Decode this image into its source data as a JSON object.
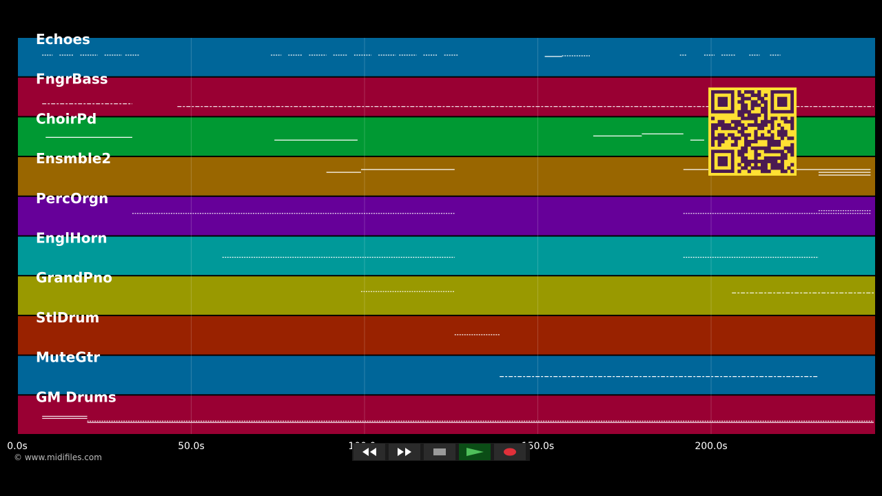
{
  "tracks": [
    {
      "name": "Echoes",
      "color": "#006699"
    },
    {
      "name": "FngrBass",
      "color": "#990033"
    },
    {
      "name": "ChoirPd",
      "color": "#009933"
    },
    {
      "name": "Ensmble2",
      "color": "#996600"
    },
    {
      "name": "PercOrgn",
      "color": "#660099"
    },
    {
      "name": "EnglHorn",
      "color": "#009999"
    },
    {
      "name": "GrandPno",
      "color": "#999900"
    },
    {
      "name": "StlDrum",
      "color": "#992200"
    },
    {
      "name": "MuteGtr",
      "color": "#006699"
    },
    {
      "name": "GM Drums",
      "color": "#990033"
    }
  ],
  "timeline": {
    "ticks": [
      "0.0s",
      "50.0s",
      "100.0s",
      "150.0s",
      "200.0s"
    ]
  },
  "notes_color": "#ffffff",
  "copyright": "© www.midifiles.com",
  "transport": {
    "rewind": "rewind-icon",
    "fast_forward": "fast-forward-icon",
    "stop": "stop-icon",
    "play": "play-icon",
    "record": "record-icon"
  },
  "qr_code": {
    "color": "#ffe033",
    "dark": "#4a1a52"
  }
}
